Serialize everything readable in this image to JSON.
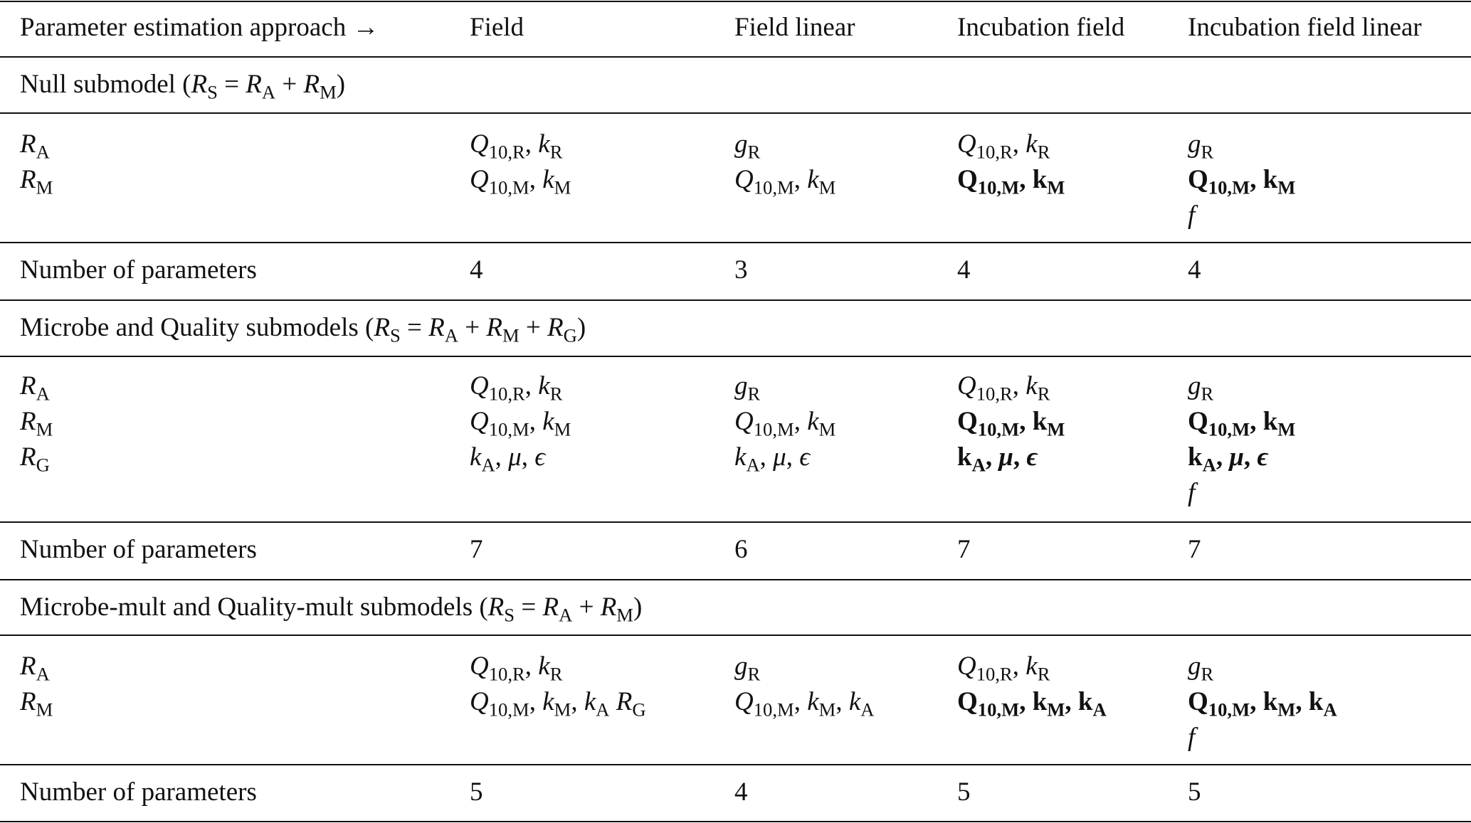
{
  "header": {
    "col0": "Parameter estimation approach →",
    "col1": "Field",
    "col2": "Field linear",
    "col3": "Incubation field",
    "col4": "Incubation field linear"
  },
  "sections": [
    {
      "title_plain": "Null submodel (",
      "title_eq": "R_S = R_A + R_M",
      "title_close": ")",
      "params": {
        "RA": {
          "field": "Q_10,R, k_R",
          "field_linear": "g_R",
          "incubation_field": "Q_10,R, k_R",
          "incubation_field_linear": "g_R"
        },
        "RM": {
          "field": "Q_10,M, k_M",
          "field_linear": "Q_10,M, k_M",
          "incubation_field": "Q_10,M, k_M",
          "incubation_field_linear": "Q_10,M, k_M"
        },
        "extra_linear": "f"
      },
      "count_label": "Number of parameters",
      "counts": [
        "4",
        "3",
        "4",
        "4"
      ]
    },
    {
      "title_plain": "Microbe and Quality submodels (",
      "title_eq": "R_S = R_A + R_M + R_G",
      "title_close": ")",
      "params": {
        "RA": {
          "field": "Q_10,R, k_R",
          "field_linear": "g_R",
          "incubation_field": "Q_10,R, k_R",
          "incubation_field_linear": "g_R"
        },
        "RM": {
          "field": "Q_10,M, k_M",
          "field_linear": "Q_10,M, k_M",
          "incubation_field": "Q_10,M, k_M",
          "incubation_field_linear": "Q_10,M, k_M"
        },
        "RG": {
          "field": "k_A, μ, ϵ",
          "field_linear": "k_A, μ, ϵ",
          "incubation_field": "k_A, μ, ϵ",
          "incubation_field_linear": "k_A, μ, ϵ"
        },
        "extra_linear": "f"
      },
      "count_label": "Number of parameters",
      "counts": [
        "7",
        "6",
        "7",
        "7"
      ]
    },
    {
      "title_plain": "Microbe-mult and Quality-mult submodels (",
      "title_eq": "R_S = R_A + R_M",
      "title_close": ")",
      "params": {
        "RA": {
          "field": "Q_10,R, k_R",
          "field_linear": "g_R",
          "incubation_field": "Q_10,R, k_R",
          "incubation_field_linear": "g_R"
        },
        "RM": {
          "field": "Q_10,M, k_M, k_A R_G",
          "field_linear": "Q_10,M, k_M, k_A",
          "incubation_field": "Q_10,M, k_M, k_A",
          "incubation_field_linear": "Q_10,M, k_M, k_A"
        },
        "extra_linear": "f"
      },
      "count_label": "Number of parameters",
      "counts": [
        "5",
        "4",
        "5",
        "5"
      ]
    }
  ],
  "sym": {
    "R": "R",
    "S": "S",
    "A": "A",
    "M": "M",
    "G": "G",
    "Q": "Q",
    "k": "k",
    "g": "g",
    "f": "f",
    "q10R": "10,R",
    "q10M": "10,M",
    "ten": "10",
    "comma": ", ",
    "mu": "μ",
    "eps": "ϵ",
    "plus": " + ",
    "eq": " = "
  }
}
